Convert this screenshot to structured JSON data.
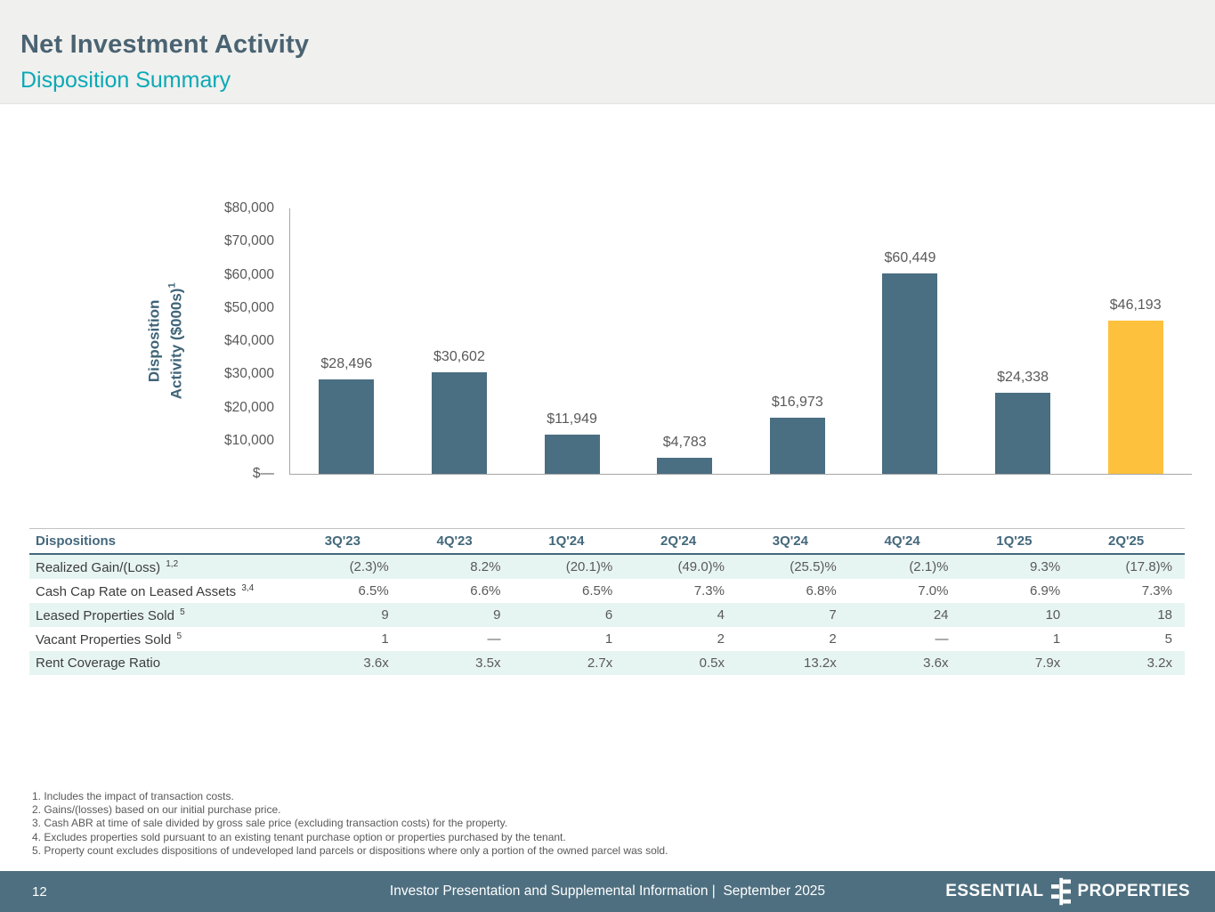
{
  "slide": {
    "title": "Net Investment Activity",
    "subtitle": "Disposition Summary"
  },
  "chart_data": {
    "type": "bar",
    "ylabel_line1": "Disposition",
    "ylabel_line2": "Activity ($000s)",
    "ylabel_sup": "1",
    "categories": [
      "3Q'23",
      "4Q'23",
      "1Q'24",
      "2Q'24",
      "3Q'24",
      "4Q'24",
      "1Q'25",
      "2Q'25"
    ],
    "values": [
      28496,
      30602,
      11949,
      4783,
      16973,
      60449,
      24338,
      46193
    ],
    "value_labels": [
      "$28,496",
      "$30,602",
      "$11,949",
      "$4,783",
      "$16,973",
      "$60,449",
      "$24,338",
      "$46,193"
    ],
    "ylim": [
      0,
      80000
    ],
    "ytick_labels": [
      "$80,000",
      "$70,000",
      "$60,000",
      "$50,000",
      "$40,000",
      "$30,000",
      "$20,000",
      "$10,000",
      "$—"
    ],
    "grid": false,
    "legend": false,
    "bar_color": "#4a6e82",
    "highlight_color": "#fdc13d",
    "highlight_index": 7
  },
  "table": {
    "header_label": "Dispositions",
    "columns": [
      "3Q'23",
      "4Q'23",
      "1Q'24",
      "2Q'24",
      "3Q'24",
      "4Q'24",
      "1Q'25",
      "2Q'25"
    ],
    "rows": [
      {
        "label": "Realized Gain/(Loss)",
        "sup": "1,2",
        "values": [
          "(2.3)%",
          "8.2%",
          "(20.1)%",
          "(49.0)%",
          "(25.5)%",
          "(2.1)%",
          "9.3%",
          "(17.8)%"
        ]
      },
      {
        "label": "Cash Cap Rate on Leased Assets",
        "sup": "3,4",
        "values": [
          "6.5%",
          "6.6%",
          "6.5%",
          "7.3%",
          "6.8%",
          "7.0%",
          "6.9%",
          "7.3%"
        ]
      },
      {
        "label": "Leased Properties Sold",
        "sup": "5",
        "values": [
          "9",
          "9",
          "6",
          "4",
          "7",
          "24",
          "10",
          "18"
        ]
      },
      {
        "label": "Vacant Properties Sold",
        "sup": "5",
        "values": [
          "1",
          "—",
          "1",
          "2",
          "2",
          "—",
          "1",
          "5"
        ]
      },
      {
        "label": "Rent Coverage Ratio",
        "sup": "",
        "values": [
          "3.6x",
          "3.5x",
          "2.7x",
          "0.5x",
          "13.2x",
          "3.6x",
          "7.9x",
          "3.2x"
        ]
      }
    ]
  },
  "footnotes": [
    "1. Includes the impact of transaction costs.",
    "2. Gains/(losses) based on our initial purchase price.",
    "3. Cash ABR at time of sale divided by gross sale price (excluding transaction costs) for the property.",
    "4. Excludes properties sold pursuant to an existing tenant purchase option or properties purchased by the tenant.",
    "5. Property count excludes dispositions of undeveloped land parcels or dispositions where only a portion of the owned parcel was sold."
  ],
  "footer": {
    "page_number": "12",
    "center_text": "Investor Presentation and Supplemental Information |  September 2025",
    "logo_word_left": "ESSENTIAL",
    "logo_word_right": "PROPERTIES"
  },
  "colors": {
    "title": "#4a6372",
    "subtitle": "#0aa9b6",
    "band_bg": "#f0f0ee",
    "axis_line": "#a6a6a6",
    "tick_text": "#595959",
    "table_header": "#44687c",
    "row_alt_bg": "#e7f5f2",
    "footer_bg": "#4e6f80"
  }
}
